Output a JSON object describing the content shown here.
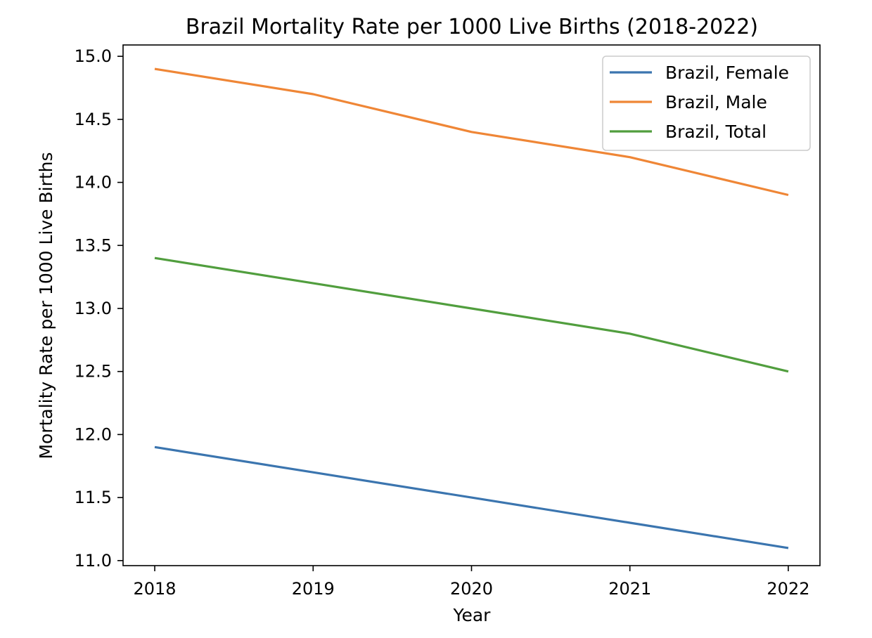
{
  "chart_data": {
    "type": "line",
    "title": "Brazil Mortality Rate per 1000 Live Births (2018-2022)",
    "xlabel": "Year",
    "ylabel": "Mortality Rate per 1000 Live Births",
    "x": [
      2018,
      2019,
      2020,
      2021,
      2022
    ],
    "x_tick_labels": [
      "2018",
      "2019",
      "2020",
      "2021",
      "2022"
    ],
    "xlim": [
      2017.8,
      2022.2
    ],
    "y_ticks": [
      11.0,
      11.5,
      12.0,
      12.5,
      13.0,
      13.5,
      14.0,
      14.5,
      15.0
    ],
    "y_tick_labels": [
      "11.0",
      "11.5",
      "12.0",
      "12.5",
      "13.0",
      "13.5",
      "14.0",
      "14.5",
      "15.0"
    ],
    "ylim": [
      10.96,
      15.09
    ],
    "grid": false,
    "legend_position": "top-right",
    "series": [
      {
        "name": "Brazil, Female",
        "color": "#3b75af",
        "values": [
          11.9,
          11.7,
          11.5,
          11.3,
          11.1
        ]
      },
      {
        "name": "Brazil, Male",
        "color": "#ef8636",
        "values": [
          14.9,
          14.7,
          14.4,
          14.2,
          13.9
        ]
      },
      {
        "name": "Brazil, Total",
        "color": "#519e3e",
        "values": [
          13.4,
          13.2,
          13.0,
          12.8,
          12.5
        ]
      }
    ]
  }
}
